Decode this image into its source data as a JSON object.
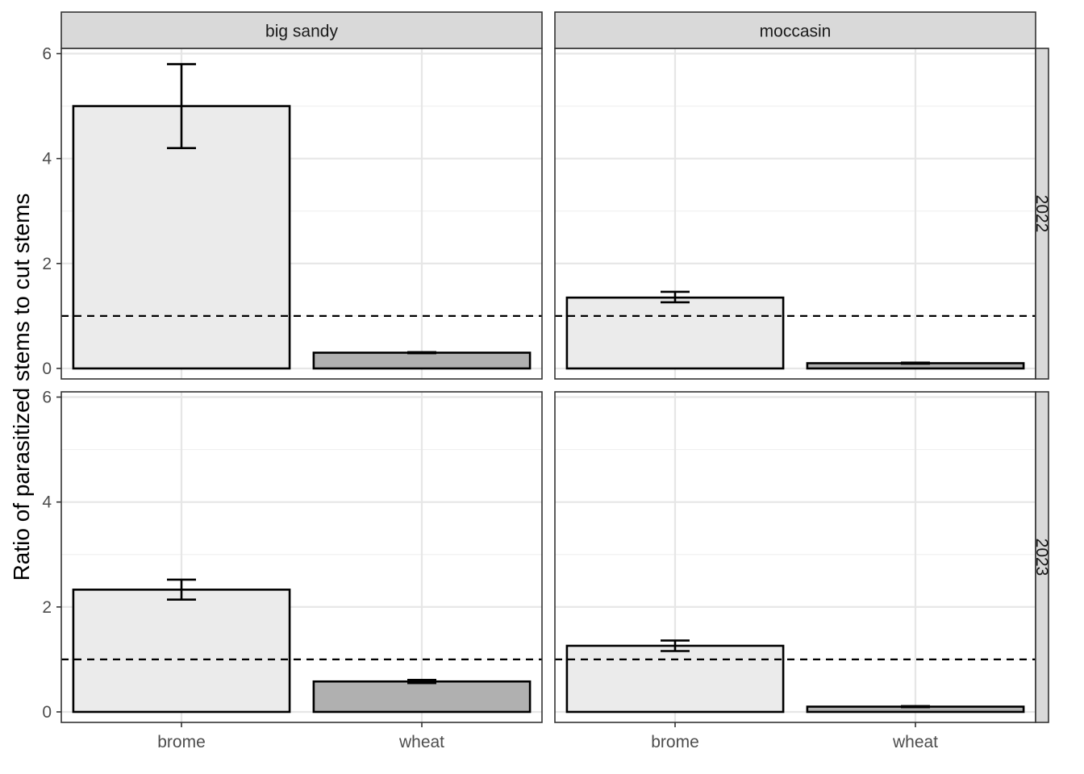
{
  "chart_data": {
    "type": "bar",
    "ylabel": "Ratio of parasitized stems to cut stems",
    "xlabel": "",
    "categories": [
      "brome",
      "wheat"
    ],
    "ylim": [
      -0.2,
      6.1
    ],
    "yticks": [
      0,
      2,
      4,
      6
    ],
    "reference_line": 1,
    "grid": true,
    "column_facets": [
      "big sandy",
      "moccasin"
    ],
    "row_facets": [
      "2022",
      "2023"
    ],
    "bar_colors": {
      "brome": "#ebebeb",
      "wheat": "#b0b0b0"
    },
    "panels": [
      {
        "column": "big sandy",
        "row": "2022",
        "bars": [
          {
            "category": "brome",
            "value": 5.0,
            "error_low": 4.2,
            "error_high": 5.8
          },
          {
            "category": "wheat",
            "value": 0.3,
            "error_low": 0.29,
            "error_high": 0.31
          }
        ]
      },
      {
        "column": "moccasin",
        "row": "2022",
        "bars": [
          {
            "category": "brome",
            "value": 1.35,
            "error_low": 1.26,
            "error_high": 1.46
          },
          {
            "category": "wheat",
            "value": 0.1,
            "error_low": 0.09,
            "error_high": 0.11
          }
        ]
      },
      {
        "column": "big sandy",
        "row": "2023",
        "bars": [
          {
            "category": "brome",
            "value": 2.33,
            "error_low": 2.14,
            "error_high": 2.52
          },
          {
            "category": "wheat",
            "value": 0.58,
            "error_low": 0.55,
            "error_high": 0.61
          }
        ]
      },
      {
        "column": "moccasin",
        "row": "2023",
        "bars": [
          {
            "category": "brome",
            "value": 1.26,
            "error_low": 1.16,
            "error_high": 1.36
          },
          {
            "category": "wheat",
            "value": 0.1,
            "error_low": 0.09,
            "error_high": 0.11
          }
        ]
      }
    ]
  }
}
